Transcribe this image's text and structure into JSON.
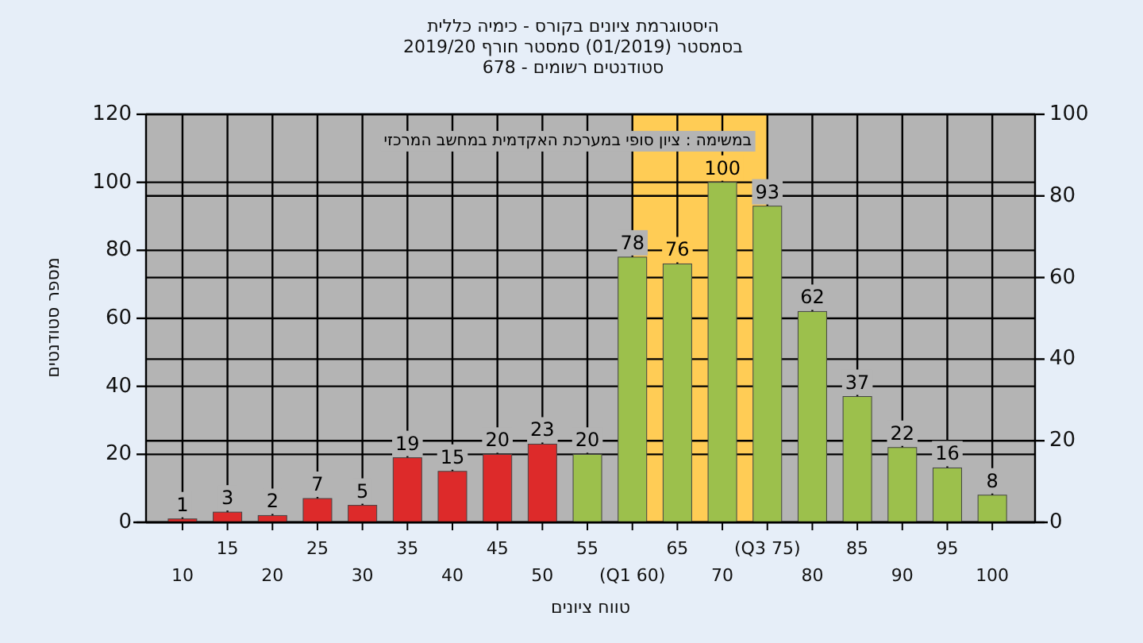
{
  "chart_data": {
    "type": "bar",
    "title": "היסטוגרמת ציונים בקורס - כימיה כללית",
    "subtitle": "בסמסטר (01/2019) סמסטר חורף 2019/20",
    "xlabel": "טווח ציונים",
    "ylabel": "מספר סטודנטים",
    "annotations": [
      "סטודנטים רשומים - 678",
      "במשימה : ציון סופי במערכת האקדמית במחשב המרכזי"
    ],
    "categories": [
      "10",
      "15",
      "20",
      "25",
      "30",
      "35",
      "40",
      "45",
      "50",
      "55",
      "(Q1 60)",
      "65",
      "70",
      "(Q3 75)",
      "80",
      "85",
      "90",
      "95",
      "100"
    ],
    "values": [
      1,
      3,
      2,
      7,
      5,
      19,
      15,
      20,
      23,
      20,
      78,
      76,
      100,
      93,
      62,
      37,
      22,
      16,
      8
    ],
    "colors": [
      "#dd2a2a",
      "#dd2a2a",
      "#dd2a2a",
      "#dd2a2a",
      "#dd2a2a",
      "#dd2a2a",
      "#dd2a2a",
      "#dd2a2a",
      "#dd2a2a",
      "#9cc04c",
      "#9cc04c",
      "#9cc04c",
      "#9cc04c",
      "#9cc04c",
      "#9cc04c",
      "#9cc04c",
      "#9cc04c",
      "#9cc04c",
      "#9cc04c"
    ],
    "data_labels": true,
    "grid": true,
    "ylim": [
      0,
      120
    ],
    "yticks": [
      0,
      20,
      40,
      60,
      80,
      100,
      120
    ],
    "y2lim": [
      0,
      100
    ],
    "y2ticks": [
      0,
      20,
      40,
      60,
      80,
      100
    ],
    "bands": [
      {
        "axis": "x",
        "from": "(Q1 60)",
        "to": "(Q3 75)",
        "color": "#ffcc55"
      }
    ]
  }
}
